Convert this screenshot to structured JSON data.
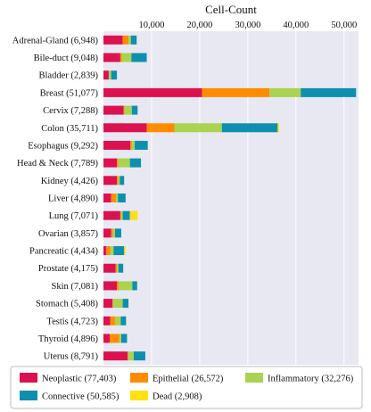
{
  "chart_data": {
    "type": "bar",
    "orientation": "horizontal",
    "stacked": true,
    "title": "",
    "xlabel": "Cell-Count",
    "ylabel": "",
    "xaxis_position": "top",
    "xlim": [
      0,
      53000
    ],
    "xticks": [
      10000,
      20000,
      30000,
      40000,
      50000
    ],
    "xtick_labels": [
      "10,000",
      "20,000",
      "30,000",
      "40,000",
      "50,000"
    ],
    "grid": true,
    "legend_position": "bottom",
    "categories": [
      "Adrenal-Gland (6,948)",
      "Bile-duct (9,048)",
      "Bladder (2,839)",
      "Breast (51,077)",
      "Cervix (7,288)",
      "Colon (35,711)",
      "Esophagus (9,292)",
      "Head & Neck (7,789)",
      "Kidney (4,426)",
      "Liver (4,890)",
      "Lung (7,071)",
      "Ovarian (3,857)",
      "Pancreatic (4,434)",
      "Prostate (4,175)",
      "Skin (7,081)",
      "Stomach (5,408)",
      "Testis (4,723)",
      "Thyroid (4,896)",
      "Uterus (8,791)"
    ],
    "series": [
      {
        "name": "Neoplastic (77,403)",
        "color": "#dc1250",
        "values": [
          4000,
          3500,
          1100,
          20500,
          4200,
          9000,
          5600,
          2800,
          2800,
          1600,
          3500,
          1600,
          600,
          2500,
          2800,
          1900,
          1400,
          1300,
          5000
        ]
      },
      {
        "name": "Epithelial (26,572)",
        "color": "#ff8c00",
        "values": [
          1200,
          300,
          0,
          14000,
          200,
          5800,
          300,
          300,
          300,
          1000,
          100,
          400,
          800,
          300,
          400,
          100,
          1000,
          2000,
          100
        ]
      },
      {
        "name": "Inflammatory (32,276)",
        "color": "#a9d350",
        "values": [
          500,
          2000,
          500,
          6500,
          1500,
          9800,
          600,
          2400,
          300,
          400,
          400,
          400,
          700,
          300,
          2800,
          2000,
          1200,
          400,
          1200
        ]
      },
      {
        "name": "Connective (50,585)",
        "color": "#0e8fb0",
        "values": [
          1200,
          3200,
          1200,
          11500,
          1200,
          11600,
          2700,
          2300,
          900,
          1600,
          1500,
          1300,
          2200,
          1000,
          1000,
          1200,
          1100,
          1200,
          2400
        ]
      },
      {
        "name": "Dead (2,908)",
        "color": "#ffe012",
        "values": [
          0,
          0,
          0,
          0,
          0,
          300,
          0,
          0,
          0,
          0,
          1600,
          0,
          300,
          0,
          0,
          0,
          0,
          0,
          0
        ]
      }
    ]
  }
}
